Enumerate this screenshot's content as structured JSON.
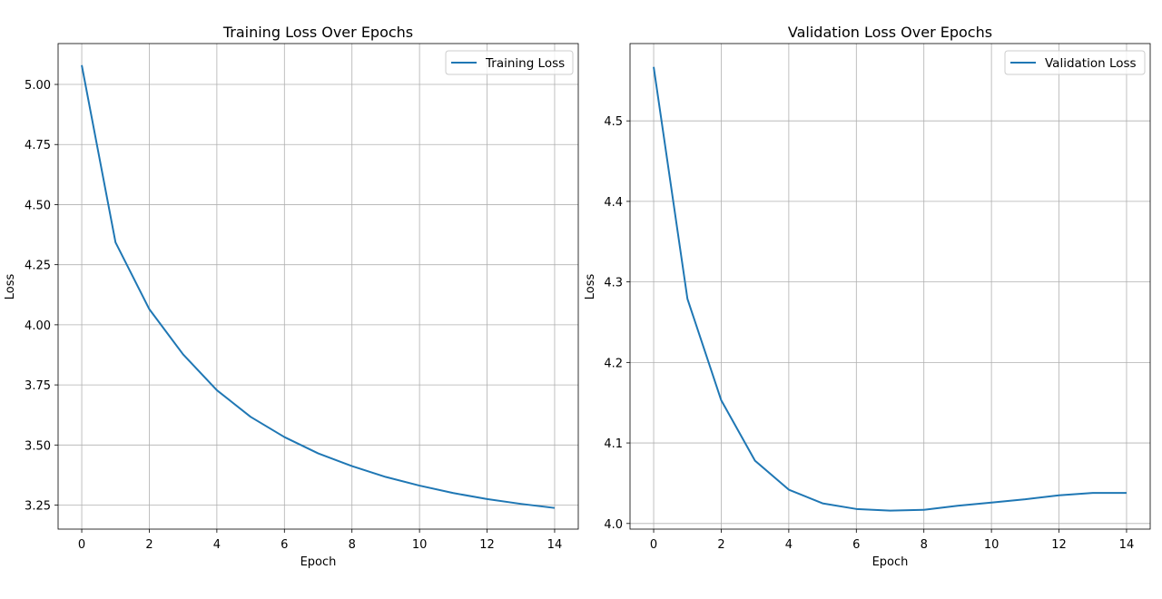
{
  "chart_data": [
    {
      "type": "line",
      "title": "Training Loss Over Epochs",
      "xlabel": "Epoch",
      "ylabel": "Loss",
      "x": [
        0,
        1,
        2,
        3,
        4,
        5,
        6,
        7,
        8,
        9,
        10,
        11,
        12,
        13,
        14
      ],
      "series": [
        {
          "name": "Training Loss",
          "color": "#1f77b4",
          "values": [
            5.08,
            4.343,
            4.065,
            3.877,
            3.728,
            3.617,
            3.533,
            3.465,
            3.412,
            3.367,
            3.331,
            3.3,
            3.275,
            3.255,
            3.238
          ]
        }
      ],
      "xlim": [
        -0.7,
        14.7
      ],
      "ylim": [
        3.15,
        5.17
      ],
      "xticks": [
        0,
        2,
        4,
        6,
        8,
        10,
        12,
        14
      ],
      "xtick_labels": [
        "0",
        "2",
        "4",
        "6",
        "8",
        "10",
        "12",
        "14"
      ],
      "yticks": [
        3.25,
        3.5,
        3.75,
        4.0,
        4.25,
        4.5,
        4.75,
        5.0
      ],
      "ytick_labels": [
        "3.25",
        "3.50",
        "3.75",
        "4.00",
        "4.25",
        "4.50",
        "4.75",
        "5.00"
      ],
      "grid": true,
      "legend_position": "top-right"
    },
    {
      "type": "line",
      "title": "Validation Loss Over Epochs",
      "xlabel": "Epoch",
      "ylabel": "Loss",
      "x": [
        0,
        1,
        2,
        3,
        4,
        5,
        6,
        7,
        8,
        9,
        10,
        11,
        12,
        13,
        14
      ],
      "series": [
        {
          "name": "Validation Loss",
          "color": "#1f77b4",
          "values": [
            4.567,
            4.279,
            4.153,
            4.078,
            4.042,
            4.025,
            4.018,
            4.016,
            4.017,
            4.022,
            4.026,
            4.03,
            4.035,
            4.038,
            4.038
          ]
        }
      ],
      "xlim": [
        -0.7,
        14.7
      ],
      "ylim": [
        3.993,
        4.596
      ],
      "xticks": [
        0,
        2,
        4,
        6,
        8,
        10,
        12,
        14
      ],
      "xtick_labels": [
        "0",
        "2",
        "4",
        "6",
        "8",
        "10",
        "12",
        "14"
      ],
      "yticks": [
        4.0,
        4.1,
        4.2,
        4.3,
        4.4,
        4.5
      ],
      "ytick_labels": [
        "4.0",
        "4.1",
        "4.2",
        "4.3",
        "4.4",
        "4.5"
      ],
      "grid": true,
      "legend_position": "top-right"
    }
  ]
}
